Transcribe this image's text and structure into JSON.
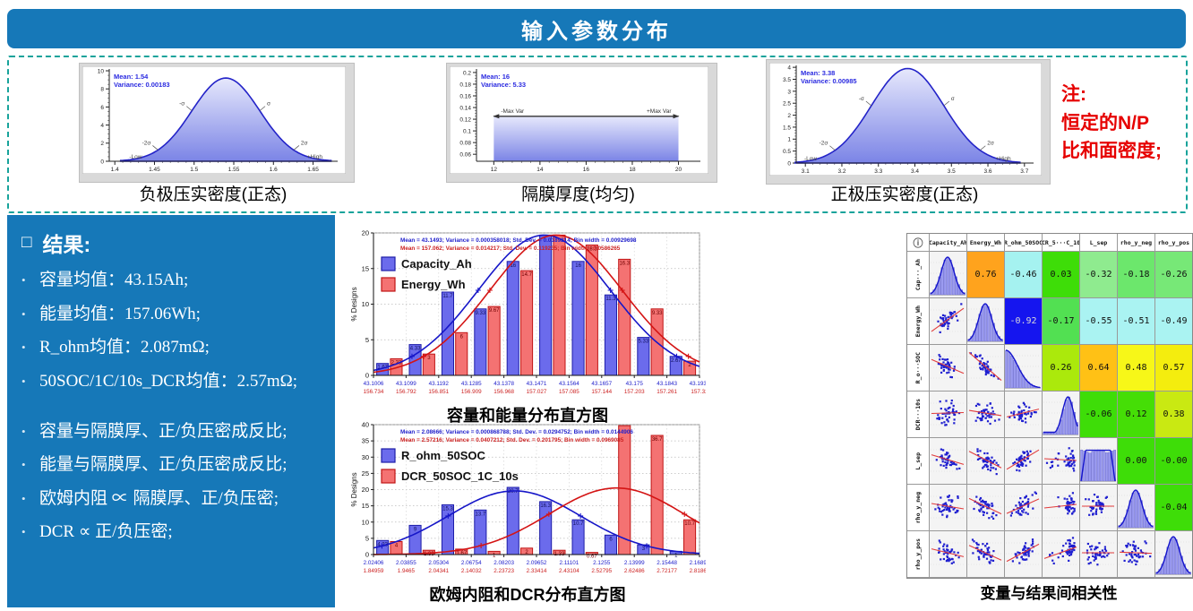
{
  "banner": {
    "title": "输入参数分布"
  },
  "note": {
    "lines": [
      "注:",
      "恒定的N/P",
      "比和面密度;"
    ],
    "color": "#e60000"
  },
  "results_panel": {
    "title": "结果:",
    "bullets": [
      "容量均值：43.15Ah;",
      "能量均值：157.06Wh;",
      "R_ohm均值：2.087mΩ;",
      "50SOC/1C/10s_DCR均值：2.57mΩ;",
      "容量与隔膜厚、正/负压密成反比;",
      "能量与隔膜厚、正/负压密成反比;",
      "欧姆内阻 ∝ 隔膜厚、正/负压密;",
      "DCR ∝ 正/负压密;"
    ],
    "panel_color": "#1678b8"
  },
  "chart_data": [
    {
      "type": "area",
      "dist": "normal",
      "title": "负极压实密度(正态)",
      "mean_label": "Mean: 1.54",
      "variance_label": "Variance: 0.00183",
      "mean": 1.54,
      "variance": 0.00183,
      "peak": 9.2,
      "xlim": [
        1.393,
        1.681
      ],
      "ylim": [
        0,
        10.2
      ],
      "x_ticks": [
        "1.4",
        "1.45",
        "1.5",
        "1.55",
        "1.6",
        "1.65"
      ],
      "y_ticks": [
        "0",
        "2",
        "4",
        "6",
        "8",
        "10"
      ],
      "annotations": [
        "-σ",
        "σ",
        "-2σ",
        "2σ",
        "-Low",
        "+High"
      ]
    },
    {
      "type": "area",
      "dist": "uniform",
      "title": "隔膜厚度(均匀)",
      "mean_label": "Mean: 16",
      "variance_label": "Variance: 5.33",
      "mean": 16,
      "variance": 5.33,
      "range": [
        12,
        20
      ],
      "height": 0.125,
      "xlim": [
        11.25,
        20.95
      ],
      "ylim": [
        0.048,
        0.206
      ],
      "x_ticks": [
        "12",
        "14",
        "16",
        "18",
        "20"
      ],
      "y_ticks": [
        "0.06",
        "0.08",
        "0.1",
        "0.12",
        "0.14",
        "0.16",
        "0.18",
        "0.2"
      ],
      "annotations": [
        "-Max Var",
        "+Max Var"
      ]
    },
    {
      "type": "area",
      "dist": "normal",
      "title": "正极压实密度(正态)",
      "mean_label": "Mean: 3.38",
      "variance_label": "Variance: 0.00985",
      "mean": 3.38,
      "variance": 0.00985,
      "peak": 3.95,
      "xlim": [
        3.075,
        3.725
      ],
      "ylim": [
        0,
        4.08
      ],
      "x_ticks": [
        "3.1",
        "3.2",
        "3.3",
        "3.4",
        "3.5",
        "3.6",
        "3.7"
      ],
      "y_ticks": [
        "0",
        "0.5",
        "1",
        "1.5",
        "2",
        "2.5",
        "3",
        "3.5",
        "4"
      ],
      "annotations": [
        "-σ",
        "σ",
        "-2σ",
        "2σ",
        "-Low",
        "+High"
      ]
    },
    {
      "type": "bar",
      "title": "容量和能量分布直方图",
      "ylabel": "% Designs",
      "ylim": [
        0,
        20
      ],
      "stats": [
        "Mean = 43.1493;   Variance = 0.000358018;   Std. Dev. = 0.0189214;   Bin width = 0.00929698",
        "Mean = 157.062;   Variance = 0.014217;   Std. Dev. = 0.119235;   Bin width = 0.0586265"
      ],
      "series": [
        {
          "name": "Capacity_Ah",
          "color": "#6b6bec",
          "values": [
            1.67,
            4.33,
            11.7,
            9.33,
            16,
            19.7,
            16,
            11.3,
            5.33,
            2.67
          ],
          "labels": [
            "1.67",
            "4.33",
            "11.7",
            "9.33",
            "16",
            "19.7",
            "16",
            "11.3",
            "5.33",
            "2.67"
          ],
          "edge_labels": [
            "43.1006",
            "43.1099",
            "43.1192",
            "43.1285",
            "43.1378",
            "43.1471",
            "43.1564",
            "43.1657",
            "43.175",
            "43.1843",
            "43.1936"
          ]
        },
        {
          "name": "Energy_Wh",
          "color": "#f47272",
          "values": [
            2.33,
            3,
            6,
            9.67,
            14.7,
            19.7,
            18.3,
            16.3,
            9.33,
            2
          ],
          "labels": [
            "2.33",
            "3",
            "6",
            "9.67",
            "14.7",
            "19.7",
            "18.3",
            "16.3",
            "9.33",
            "2"
          ],
          "edge_labels": [
            "156.734",
            "156.792",
            "156.851",
            "156.909",
            "156.968",
            "157.027",
            "157.085",
            "157.144",
            "157.203",
            "157.261",
            "157.32"
          ]
        }
      ],
      "curves": {
        "blue": {
          "mu": 0.524,
          "sigma": 0.203,
          "peak": 19.7
        },
        "red": {
          "mu": 0.56,
          "sigma": 0.203,
          "peak": 19.7
        }
      }
    },
    {
      "type": "bar",
      "title": "欧姆内阻和DCR分布直方图",
      "ylabel": "% Designs",
      "ylim": [
        0,
        40
      ],
      "stats": [
        "Mean = 2.08666;   Variance = 0.000868788;   Std. Dev. = 0.0294752;   Bin width = 0.0144906",
        "Mean = 2.57216;   Variance = 0.0407212;   Std. Dev. = 0.201795;   Bin width = 0.0969085"
      ],
      "series": [
        {
          "name": "R_ohm_50SOC",
          "color": "#6b6bec",
          "values": [
            4.33,
            9,
            15.3,
            13.7,
            20.7,
            16.3,
            10.7,
            6,
            3,
            1
          ],
          "labels": [
            "4.33",
            "9",
            "15.3",
            "13.7",
            "20.7",
            "16.3",
            "10.7",
            "6",
            "3",
            "1"
          ],
          "edge_labels": [
            "2.02406",
            "2.03855",
            "2.05304",
            "2.06754",
            "2.08203",
            "2.09652",
            "2.11101",
            "2.1255",
            "2.13999",
            "2.15448",
            "2.16897"
          ]
        },
        {
          "name": "DCR_50SOC_1C_10s",
          "color": "#f47272",
          "values": [
            4,
            1.33,
            1.67,
            1,
            2,
            1.33,
            0.67,
            39.7,
            36.7,
            10.7
          ],
          "labels": [
            "4",
            "1.33",
            "1.67",
            "1",
            "2",
            "1.33",
            "0.67",
            "39.7",
            "36.7",
            "10.7"
          ],
          "edge_labels": [
            "1.84959",
            "1.9465",
            "2.04341",
            "2.14032",
            "2.23723",
            "2.33414",
            "2.43104",
            "2.52795",
            "2.62486",
            "2.72177",
            "2.81868"
          ]
        }
      ],
      "curves": {
        "blue": {
          "mu": 0.432,
          "sigma": 0.203,
          "peak": 19.6
        },
        "red": {
          "mu": 0.746,
          "sigma": 0.208,
          "peak": 20.5
        }
      }
    },
    {
      "type": "heatmap",
      "title": "变量与结果间相关性",
      "info_icon": "ⓘ",
      "columns": [
        "Capacity_Ah",
        "Energy_Wh",
        "R_ohm_50SOC",
        "DCR_5···C_10s",
        "L_sep",
        "rho_y_neg",
        "rho_y_pos"
      ],
      "row_labels": [
        "Cap···_Ah",
        "Energy_Wh",
        "R_o···SOC",
        "DCR···10s",
        "L_sep",
        "rho_y_neg",
        "rho_y_pos"
      ],
      "diag_shapes": [
        "bell",
        "bell",
        "desc",
        "rightpeak",
        "uniform",
        "bell",
        "bell"
      ],
      "rows": [
        [
          {
            "v": "0.76",
            "bg": "#ffa31d"
          },
          {
            "v": "-0.46",
            "bg": "#a5f2f0"
          },
          {
            "v": "0.03",
            "bg": "#3edd08"
          },
          {
            "v": "-0.32",
            "bg": "#8feb8f"
          },
          {
            "v": "-0.18",
            "bg": "#6ce76c"
          },
          {
            "v": "-0.26",
            "bg": "#77e877"
          }
        ],
        [
          {
            "v": "-0.92",
            "bg": "#1515ef",
            "fg": "#d8d8d8"
          },
          {
            "v": "-0.17",
            "bg": "#52e052"
          },
          {
            "v": "-0.55",
            "bg": "#aaf3f2"
          },
          {
            "v": "-0.51",
            "bg": "#aaf3f2"
          },
          {
            "v": "-0.49",
            "bg": "#aaf3f2"
          }
        ],
        [
          {
            "v": "0.26",
            "bg": "#abe90c"
          },
          {
            "v": "0.64",
            "bg": "#ffc115"
          },
          {
            "v": "0.48",
            "bg": "#f7f718"
          },
          {
            "v": "0.57",
            "bg": "#f4ed0e"
          }
        ],
        [
          {
            "v": "-0.06",
            "bg": "#3edd08"
          },
          {
            "v": "0.12",
            "bg": "#45de06"
          },
          {
            "v": "0.38",
            "bg": "#c9e912"
          }
        ],
        [
          {
            "v": "0.00",
            "bg": "#3edd08"
          },
          {
            "v": "-0.00",
            "bg": "#3edd08"
          }
        ],
        [
          {
            "v": "-0.04",
            "bg": "#3edd08"
          }
        ]
      ]
    }
  ]
}
